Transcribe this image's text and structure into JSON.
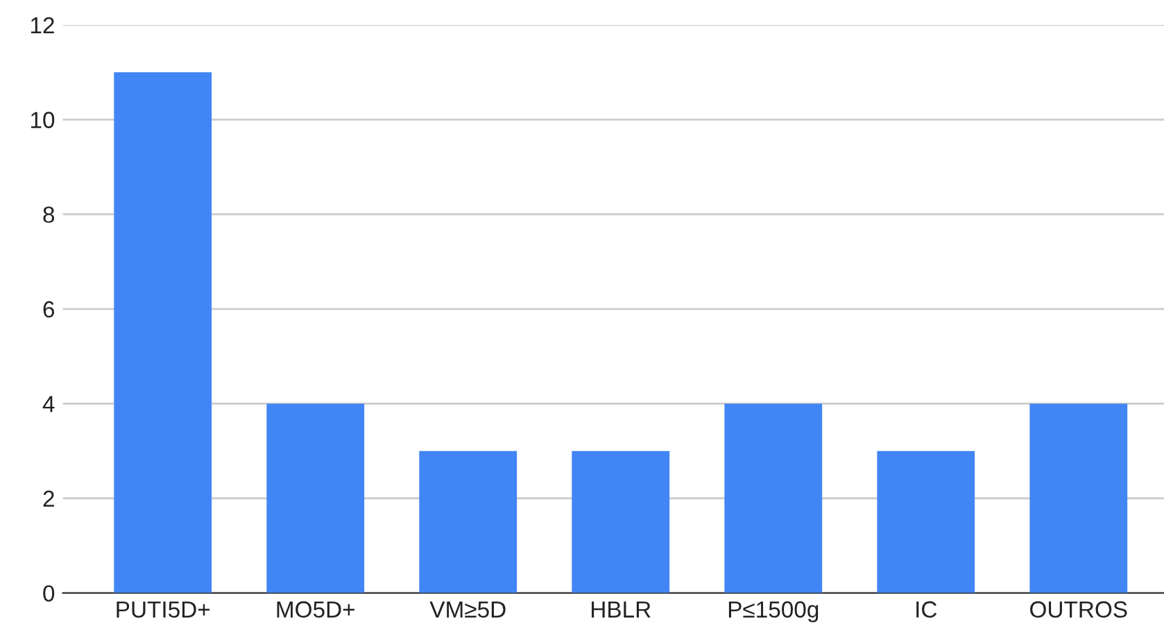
{
  "chart_data": {
    "type": "bar",
    "categories": [
      "PUTI5D+",
      "MO5D+",
      "VM≥5D",
      "HBLR",
      "P≤1500g",
      "IC",
      "OUTROS"
    ],
    "values": [
      11,
      4,
      3,
      3,
      4,
      3,
      4
    ],
    "color": "#4285f4",
    "ylim": [
      0,
      12
    ],
    "yticks": [
      0,
      2,
      4,
      6,
      8,
      10,
      12
    ],
    "grid": "y",
    "legend": false
  }
}
